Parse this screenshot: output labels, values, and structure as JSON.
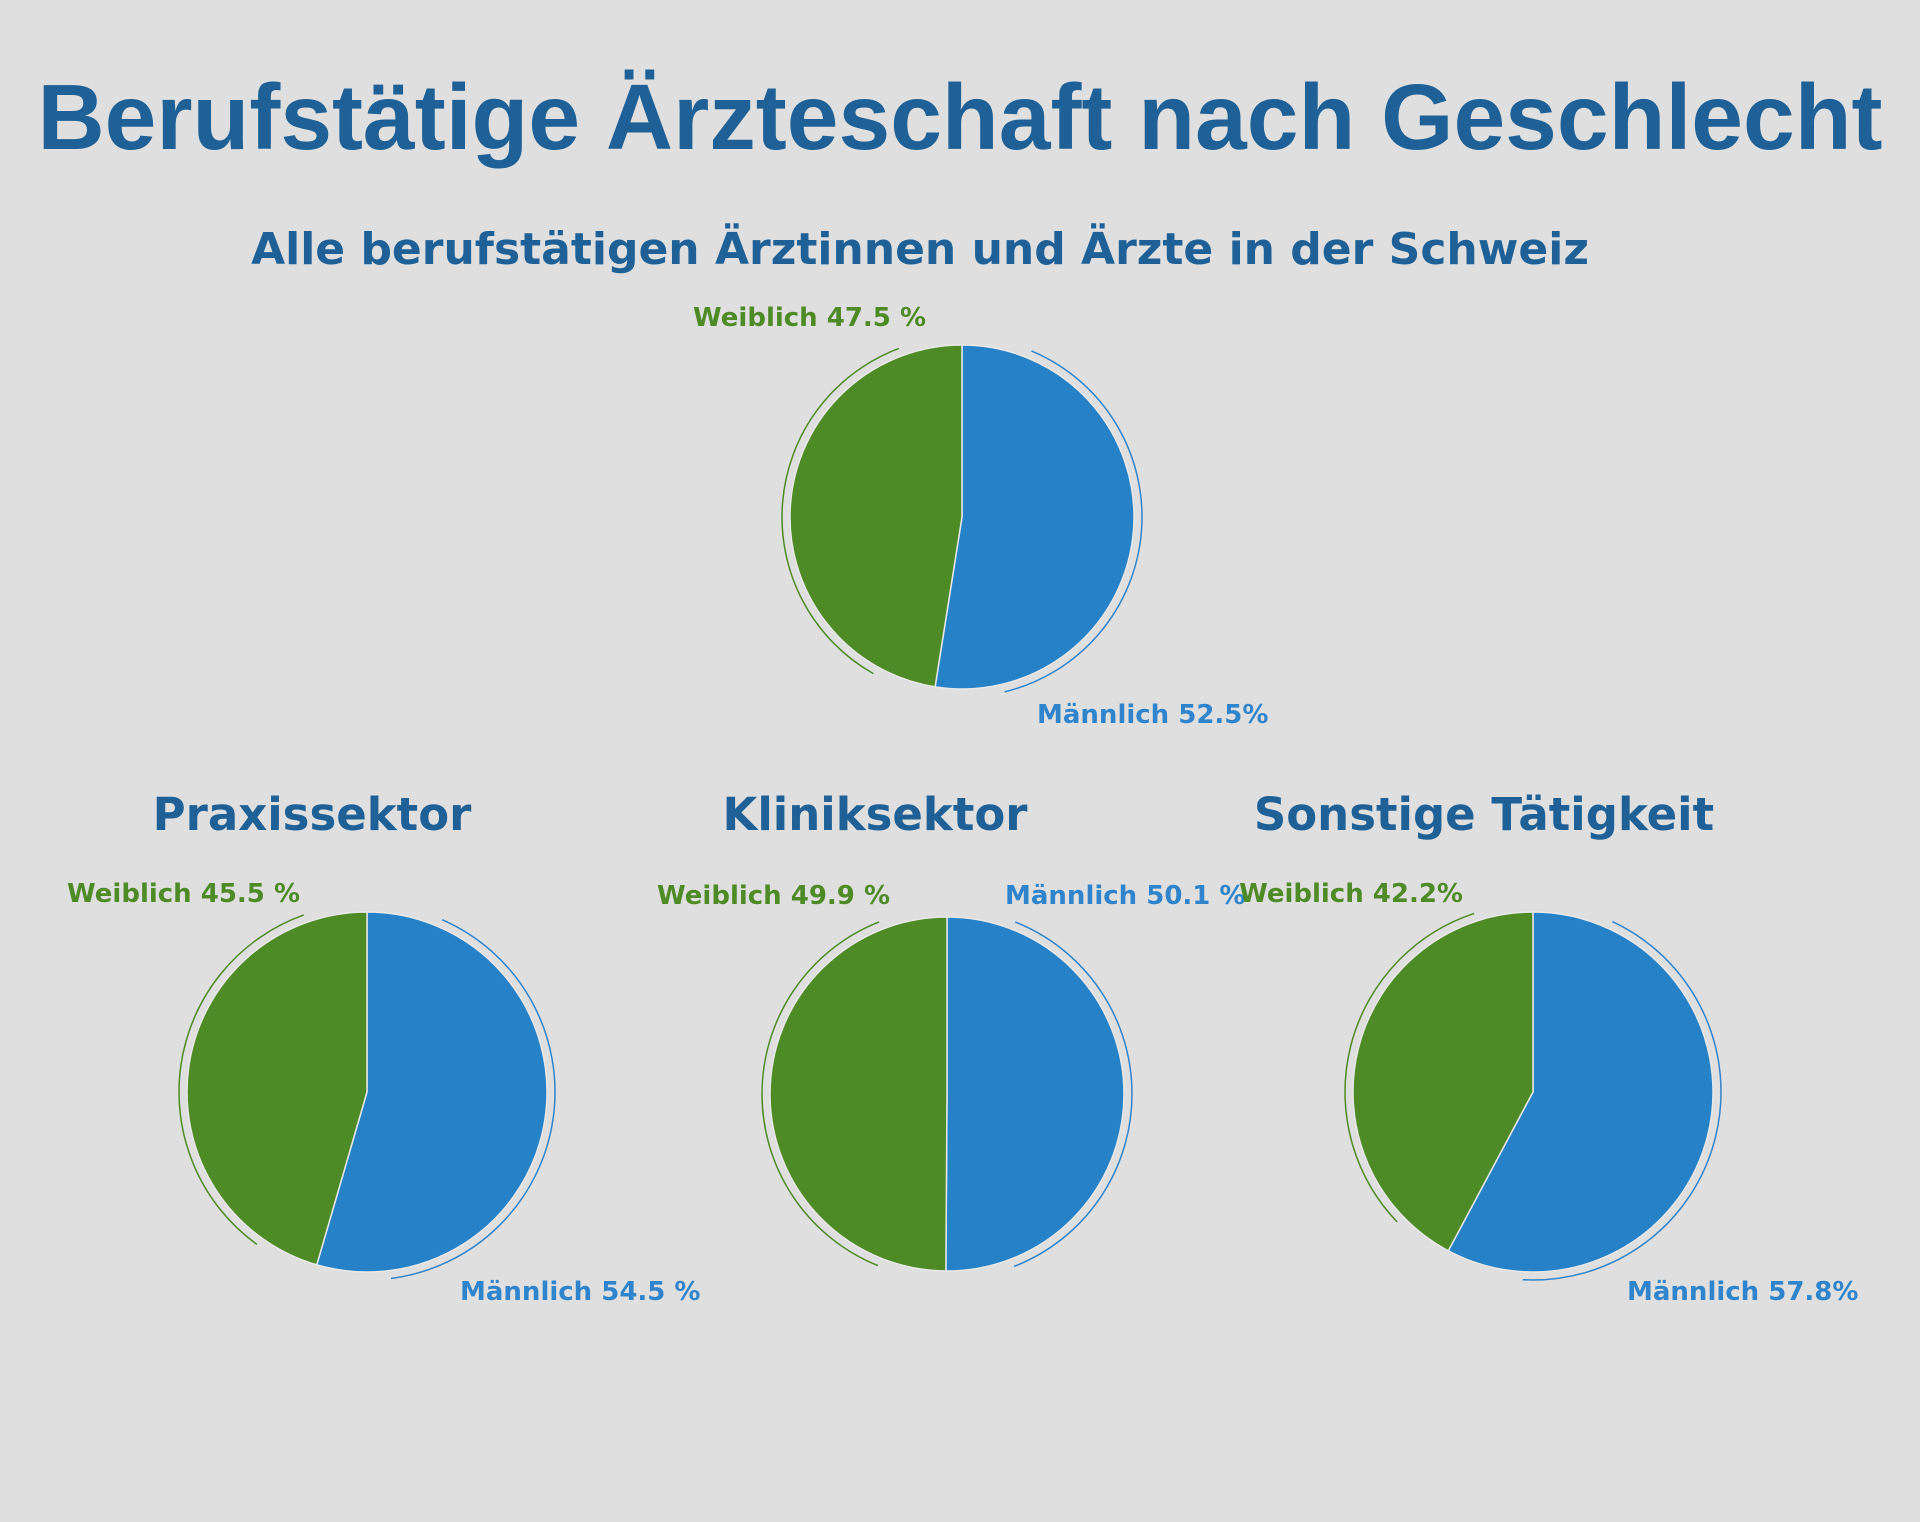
{
  "title": "Berufstätige Ärzteschaft nach Geschlecht",
  "colors": {
    "background": "#dfdfdf",
    "title": "#1f6196",
    "maennlich": "#2681c6",
    "weiblich": "#4e8a26",
    "label_maennlich": "#2f84cc",
    "label_weiblich": "#4e8a26"
  },
  "chart_data": [
    {
      "type": "pie",
      "title": "Alle berufstätigen Ärztinnen und Ärzte in der Schweiz",
      "categories": [
        "Männlich",
        "Weiblich"
      ],
      "values": [
        52.5,
        47.5
      ],
      "labels": [
        "Männlich 52.5%",
        "Weiblich 47.5 %"
      ]
    },
    {
      "type": "pie",
      "title": "Praxissektor",
      "categories": [
        "Männlich",
        "Weiblich"
      ],
      "values": [
        54.5,
        45.5
      ],
      "labels": [
        "Männlich 54.5 %",
        "Weiblich 45.5 %"
      ]
    },
    {
      "type": "pie",
      "title": "Kliniksektor",
      "categories": [
        "Männlich",
        "Weiblich"
      ],
      "values": [
        50.1,
        49.9
      ],
      "labels": [
        "Männlich 50.1 %",
        "Weiblich 49.9 %"
      ]
    },
    {
      "type": "pie",
      "title": "Sonstige Tätigkeit",
      "categories": [
        "Männlich",
        "Weiblich"
      ],
      "values": [
        57.8,
        42.2
      ],
      "labels": [
        "Männlich 57.8%",
        "Weiblich 42.2%"
      ]
    }
  ]
}
